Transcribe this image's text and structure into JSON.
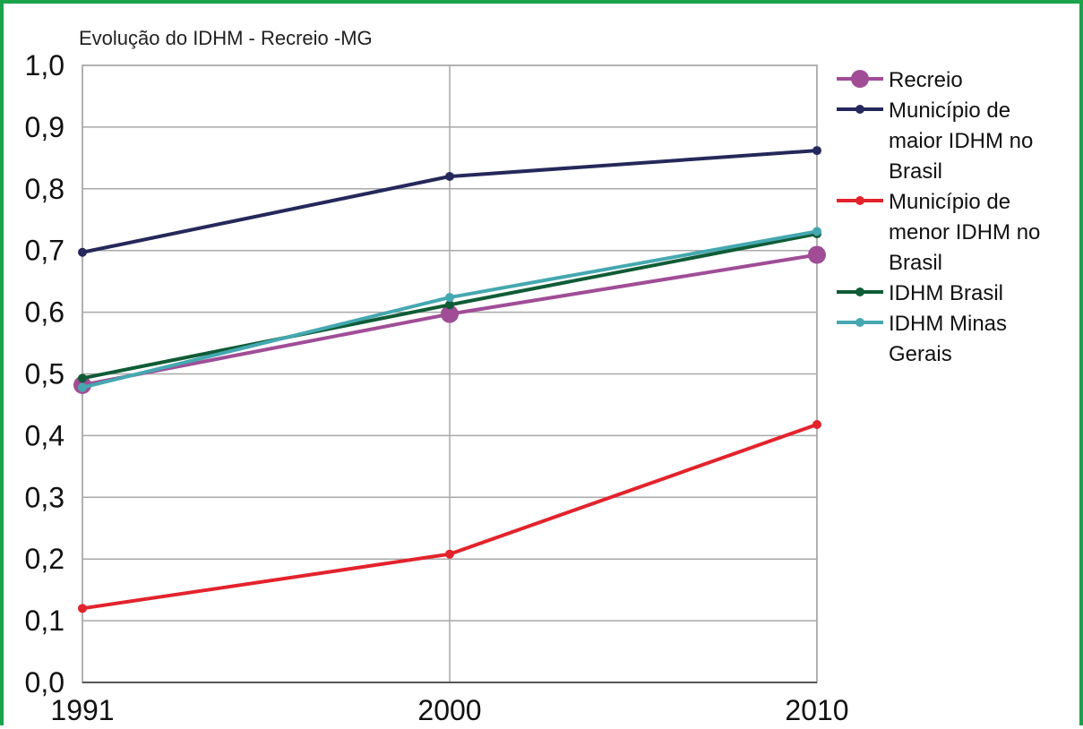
{
  "chart_data": {
    "type": "line",
    "title": "Evolução do IDHM - Recreio -MG",
    "xlabel": "",
    "ylabel": "",
    "categories": [
      "1991",
      "2000",
      "2010"
    ],
    "ylim": [
      0,
      1
    ],
    "yticks": [
      "0,0",
      "0,1",
      "0,2",
      "0,3",
      "0,4",
      "0,5",
      "0,6",
      "0,7",
      "0,8",
      "0,9",
      "1,0"
    ],
    "grid": true,
    "legend_position": "right",
    "series": [
      {
        "name": "Recreio",
        "legend_lines": [
          "Recreio"
        ],
        "values": [
          0.482,
          0.597,
          0.693
        ],
        "color": "#a04d96",
        "marker": "large"
      },
      {
        "name": "Município de maior IDHM no Brasil",
        "legend_lines": [
          "Município de",
          "maior IDHM no",
          "Brasil"
        ],
        "values": [
          0.697,
          0.82,
          0.862
        ],
        "color": "#25285a",
        "marker": "small"
      },
      {
        "name": "Município de menor IDHM no Brasil",
        "legend_lines": [
          "Município de",
          "menor IDHM no",
          "Brasil"
        ],
        "values": [
          0.12,
          0.208,
          0.418
        ],
        "color": "#e3232c",
        "marker": "small"
      },
      {
        "name": "IDHM Brasil",
        "legend_lines": [
          "IDHM Brasil"
        ],
        "values": [
          0.493,
          0.612,
          0.727
        ],
        "color": "#0f5c36",
        "marker": "small"
      },
      {
        "name": "IDHM Minas Gerais",
        "legend_lines": [
          "IDHM Minas",
          "Gerais"
        ],
        "values": [
          0.478,
          0.624,
          0.731
        ],
        "color": "#45a8b0",
        "marker": "small"
      }
    ]
  }
}
